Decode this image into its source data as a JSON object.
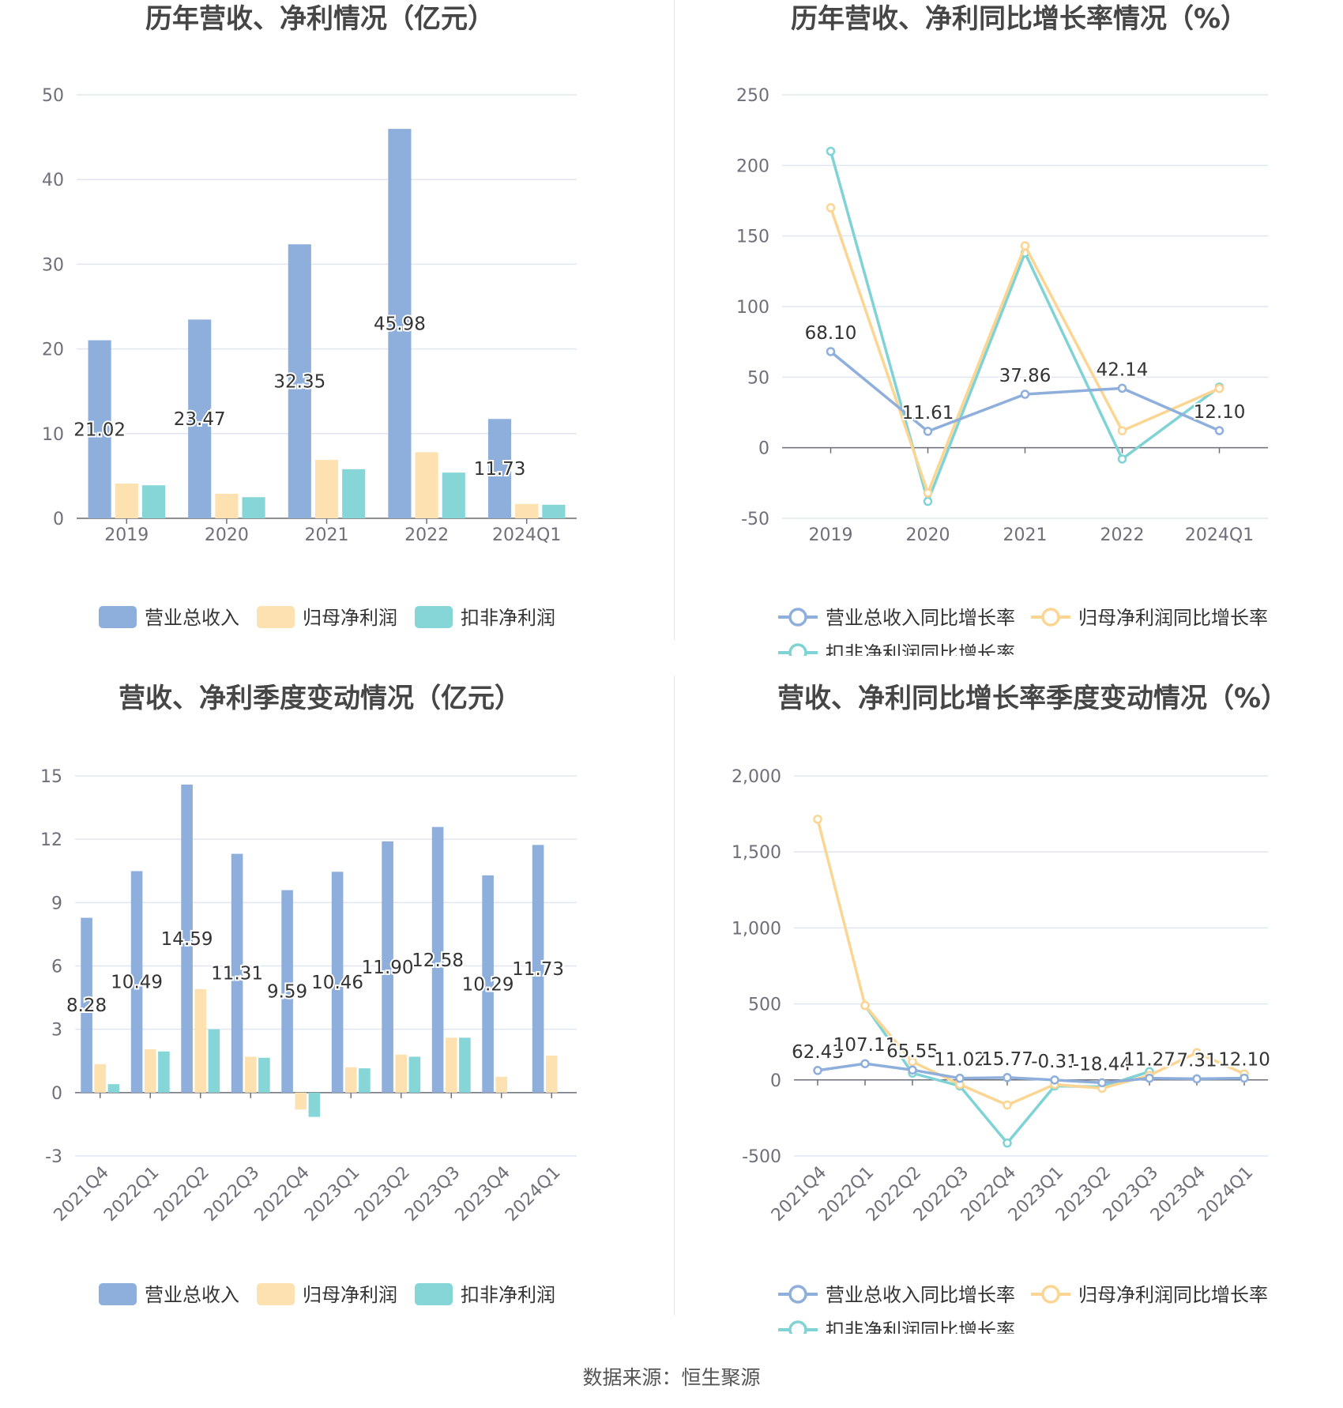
{
  "colors": {
    "revenue": "#8eaedc",
    "net_profit": "#fde1b0",
    "deducted": "#86d6d8",
    "revenue_line": "#8eaedc",
    "net_line": "#fcd592",
    "deducted_line": "#7fd3d5",
    "grid": "#e0e6f1",
    "axis_text": "#6e7079",
    "title": "#464646"
  },
  "source": "数据来源：恒生聚源",
  "chart_data": [
    {
      "type": "bar",
      "title": "历年营收、净利情况（亿元）",
      "categories": [
        "2019",
        "2020",
        "2021",
        "2022",
        "2024Q1"
      ],
      "ylim": [
        0,
        50
      ],
      "yticks": [
        0,
        10,
        20,
        30,
        40,
        50
      ],
      "series": [
        {
          "name": "营业总收入",
          "values": [
            21.02,
            23.47,
            32.35,
            45.98,
            11.73
          ],
          "labels": [
            "21.02",
            "23.47",
            "32.35",
            "45.98",
            "11.73"
          ]
        },
        {
          "name": "归母净利润",
          "values": [
            4.1,
            2.9,
            6.9,
            7.8,
            1.7
          ]
        },
        {
          "name": "扣非净利润",
          "values": [
            3.9,
            2.5,
            5.8,
            5.4,
            1.6
          ]
        }
      ]
    },
    {
      "type": "line",
      "title": "历年营收、净利同比增长率情况（%）",
      "categories": [
        "2019",
        "2020",
        "2021",
        "2022",
        "2024Q1"
      ],
      "ylim": [
        -50,
        250
      ],
      "yticks": [
        -50,
        0,
        50,
        100,
        150,
        200,
        250
      ],
      "series": [
        {
          "name": "营业总收入同比增长率",
          "values": [
            68.1,
            11.61,
            37.86,
            42.14,
            12.1
          ],
          "labels": [
            "68.10",
            "11.61",
            "37.86",
            "42.14",
            "12.10"
          ]
        },
        {
          "name": "归母净利润同比增长率",
          "values": [
            170,
            -32,
            143,
            12,
            42
          ]
        },
        {
          "name": "扣非净利润同比增长率",
          "values": [
            210,
            -38,
            138,
            -8,
            43
          ]
        }
      ]
    },
    {
      "type": "bar",
      "title": "营收、净利季度变动情况（亿元）",
      "categories": [
        "2021Q4",
        "2022Q1",
        "2022Q2",
        "2022Q3",
        "2022Q4",
        "2023Q1",
        "2023Q2",
        "2023Q3",
        "2023Q4",
        "2024Q1"
      ],
      "ylim": [
        -3,
        15
      ],
      "yticks": [
        -3,
        0,
        3,
        6,
        9,
        12,
        15
      ],
      "series": [
        {
          "name": "营业总收入",
          "values": [
            8.28,
            10.49,
            14.59,
            11.31,
            9.59,
            10.46,
            11.9,
            12.58,
            10.29,
            11.73
          ],
          "labels": [
            "8.28",
            "10.49",
            "14.59",
            "11.31",
            "9.59",
            "10.46",
            "11.90",
            "12.58",
            "10.29",
            "11.73"
          ]
        },
        {
          "name": "归母净利润",
          "values": [
            1.35,
            2.05,
            4.9,
            1.7,
            -0.8,
            1.2,
            1.8,
            2.6,
            0.75,
            1.75
          ]
        },
        {
          "name": "扣非净利润",
          "values": [
            0.4,
            1.95,
            3.0,
            1.65,
            -1.15,
            1.15,
            1.7,
            2.6,
            null,
            null
          ]
        }
      ]
    },
    {
      "type": "line",
      "title": "营收、净利同比增长率季度变动情况（%）",
      "categories": [
        "2021Q4",
        "2022Q1",
        "2022Q2",
        "2022Q3",
        "2022Q4",
        "2023Q1",
        "2023Q2",
        "2023Q3",
        "2023Q4",
        "2024Q1"
      ],
      "ylim": [
        -500,
        2000
      ],
      "yticks": [
        -500,
        0,
        500,
        1000,
        1500,
        2000
      ],
      "ytick_labels": [
        "-500",
        "0",
        "500",
        "1,000",
        "1,500",
        "2,000"
      ],
      "series": [
        {
          "name": "营业总收入同比增长率",
          "values": [
            62.43,
            107.11,
            65.55,
            11.02,
            15.77,
            -0.31,
            -18.44,
            11.27,
            7.31,
            12.1
          ],
          "labels": [
            "62.43",
            "107.11",
            "65.55",
            "11.02",
            "15.77",
            "-0.31",
            "-18.44",
            "11.27",
            "7.31",
            "12.10"
          ]
        },
        {
          "name": "归母净利润同比增长率",
          "values": [
            1715,
            490,
            120,
            -30,
            -165,
            -30,
            -55,
            30,
            180,
            40
          ]
        },
        {
          "name": "扣非净利润同比增长率",
          "values": [
            null,
            490,
            45,
            -40,
            -415,
            -40,
            -45,
            55,
            null,
            null
          ]
        }
      ]
    }
  ]
}
